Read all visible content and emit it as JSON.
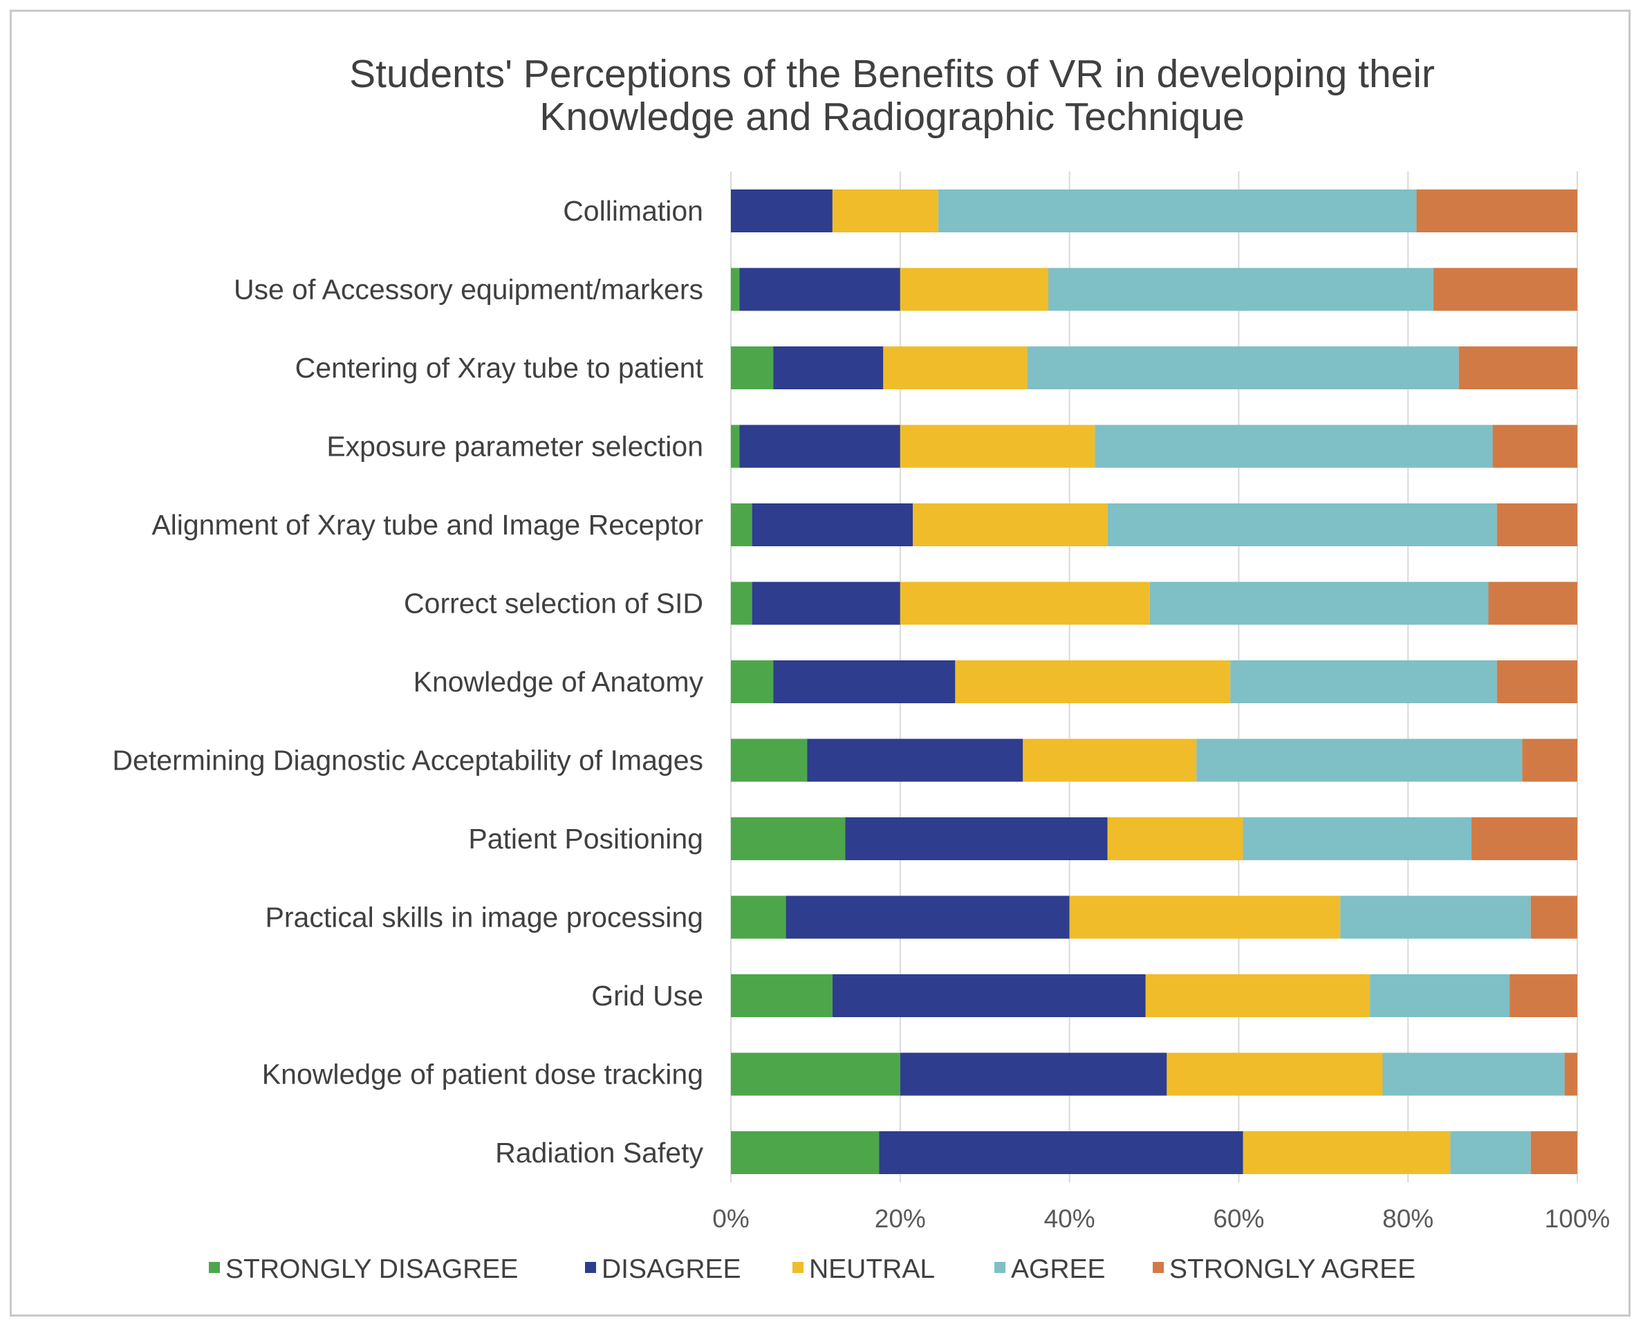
{
  "chart_data": {
    "type": "bar",
    "orientation": "horizontal",
    "stacked": true,
    "percent": true,
    "title_lines": [
      "Students' Perceptions of the Benefits of VR in developing their",
      "Knowledge and Radiographic Technique"
    ],
    "categories": [
      "Collimation",
      "Use of Accessory equipment/markers",
      "Centering of Xray tube to patient",
      "Exposure parameter selection",
      "Alignment of Xray tube and Image Receptor",
      "Correct selection of SID",
      "Knowledge of Anatomy",
      "Determining Diagnostic Acceptability of Images",
      "Patient Positioning",
      "Practical skills in image processing",
      "Grid Use",
      "Knowledge of patient dose tracking",
      "Radiation Safety"
    ],
    "series": [
      {
        "name": "STRONGLY DISAGREE",
        "color": "#4ea64a",
        "values": [
          0,
          1,
          5,
          1,
          2.5,
          2.5,
          5,
          9,
          13.5,
          6.5,
          12,
          20,
          17.5
        ]
      },
      {
        "name": "DISAGREE",
        "color": "#2e3d8e",
        "values": [
          12,
          19,
          13,
          19,
          19,
          17.5,
          21.5,
          25.5,
          31,
          33.5,
          37,
          31.5,
          43
        ]
      },
      {
        "name": "NEUTRAL",
        "color": "#f0bc29",
        "values": [
          12.5,
          17.5,
          17,
          23,
          23,
          29.5,
          32.5,
          20.5,
          16,
          32,
          26.5,
          25.5,
          24.5
        ]
      },
      {
        "name": "AGREE",
        "color": "#7fbfc6",
        "values": [
          56.5,
          45.5,
          51,
          47,
          46,
          40,
          31.5,
          38.5,
          27,
          22.5,
          16.5,
          21.5,
          9.5
        ]
      },
      {
        "name": "STRONGLY AGREE",
        "color": "#d27a45",
        "values": [
          19,
          17,
          14,
          10,
          9.5,
          10.5,
          9.5,
          6.5,
          12.5,
          5.5,
          8,
          1.5,
          5.5
        ]
      }
    ],
    "xlim": [
      0,
      100
    ],
    "x_ticks": [
      "0%",
      "20%",
      "40%",
      "60%",
      "80%",
      "100%"
    ],
    "grid": true,
    "legend_position": "bottom"
  }
}
